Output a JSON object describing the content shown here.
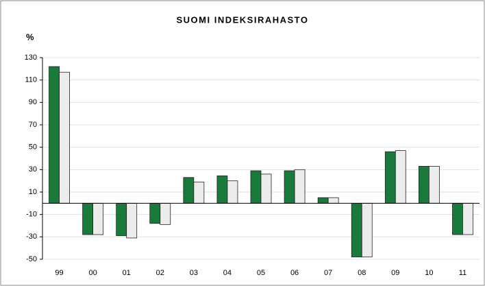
{
  "chart_data": {
    "type": "bar",
    "title": "SUOMI INDEKSIRAHASTO",
    "y_label": "%",
    "categories": [
      "99",
      "00",
      "01",
      "02",
      "03",
      "04",
      "05",
      "06",
      "07",
      "08",
      "09",
      "10",
      "11"
    ],
    "series": [
      {
        "color": "#197a3c",
        "values": [
          122,
          -28,
          -29,
          -18,
          23,
          24.5,
          29,
          29,
          5,
          -48,
          46,
          33,
          -28
        ]
      },
      {
        "color": "#ececec",
        "values": [
          117,
          -28,
          -31,
          -19,
          19,
          20,
          26,
          30,
          5,
          -48,
          47,
          33,
          -28
        ]
      }
    ],
    "ylim": [
      -50,
      130
    ],
    "yticks": [
      -50,
      -30,
      -10,
      10,
      30,
      50,
      70,
      90,
      110,
      130
    ],
    "grid": true
  }
}
